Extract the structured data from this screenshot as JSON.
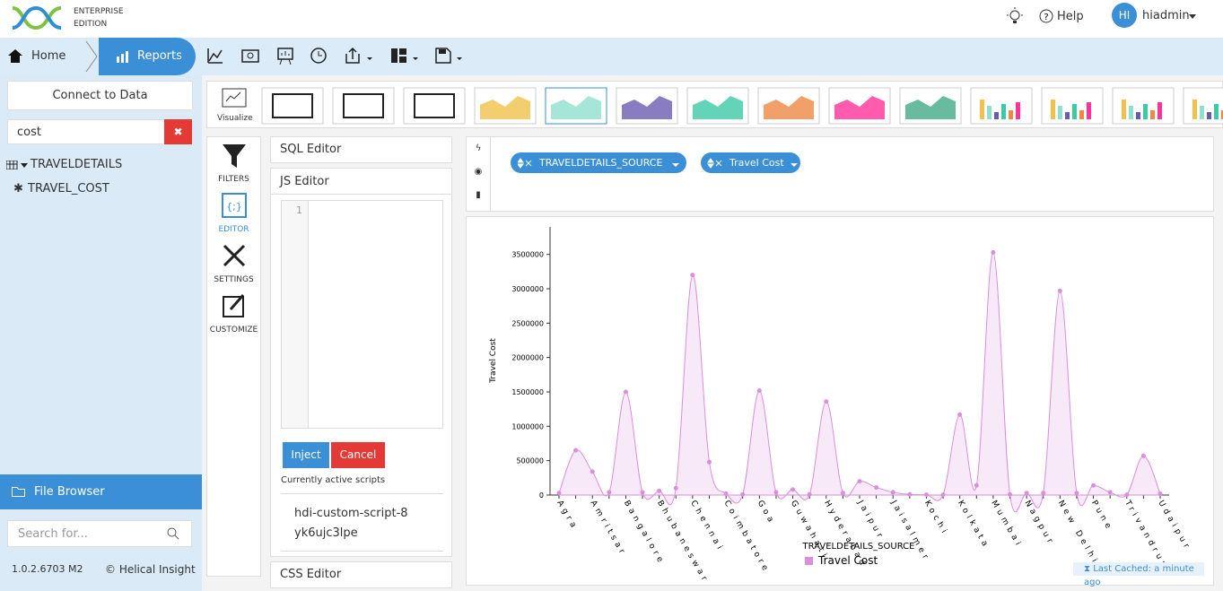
{
  "header": {
    "edition_top": "ENTERPRISE",
    "edition_bottom": "EDITION",
    "help": "Help",
    "avatar": "HI",
    "user": "hiadmin"
  },
  "nav": {
    "home": "Home",
    "reports": "Reports"
  },
  "sidebar": {
    "connect": "Connect to Data",
    "search": "cost",
    "tree": [
      "TRAVELDETAILS",
      "TRAVEL_COST"
    ],
    "file_browser": "File Browser",
    "search_placeholder": "Search for...",
    "version": "1.0.2.6703 M2",
    "copyright": "© Helical Insight"
  },
  "toolbar": {
    "visualize": "Visualize"
  },
  "tabs": [
    "FILTERS",
    "EDITOR",
    "SETTINGS",
    "CUSTOMIZE"
  ],
  "editor": {
    "sql": "SQL Editor",
    "js": "JS Editor",
    "line": "1",
    "inject": "Inject",
    "cancel": "Cancel",
    "active": "Currently active scripts",
    "script": "hdi-custom-script-8yk6ujc3lpe",
    "css": "CSS Editor"
  },
  "pills": [
    "TRAVELDETAILS_SOURCE",
    "Travel Cost"
  ],
  "cache": "Last Cached: a minute ago",
  "chart_data": {
    "type": "area",
    "x_label": "TRAVELDETAILS_SOURCE",
    "y_label": "Travel Cost",
    "categories": [
      "Agra",
      null,
      "Amritsar",
      null,
      "Bangalore",
      null,
      "Bhubaneswar",
      null,
      "Chennai",
      null,
      "Coimbatore",
      null,
      "Goa",
      null,
      "Guwahati",
      null,
      "Hyderabad",
      null,
      "Jaipur",
      null,
      "Jaisalmer",
      null,
      "Kochi",
      null,
      "Kolkata",
      null,
      "Mumbai",
      null,
      "Nagpur",
      null,
      "New Delhi",
      null,
      "Pune",
      null,
      "Trivandrum",
      null,
      "Udaipur"
    ],
    "series": [
      {
        "name": "Travel Cost",
        "color": "#d98fd9",
        "values": [
          30000,
          650000,
          340000,
          40000,
          1500000,
          40000,
          60000,
          100000,
          3200000,
          480000,
          20000,
          10000,
          1520000,
          40000,
          80000,
          10000,
          1360000,
          30000,
          200000,
          110000,
          40000,
          10000,
          5000,
          5000,
          1170000,
          140000,
          3530000,
          10000,
          30000,
          30000,
          2970000,
          30000,
          140000,
          40000,
          5000,
          570000,
          20000
        ]
      }
    ],
    "ylim": [
      0,
      3900000
    ],
    "yticks": [
      0,
      500000,
      1000000,
      1500000,
      2000000,
      2500000,
      3000000,
      3500000
    ],
    "legend": "bottom"
  }
}
